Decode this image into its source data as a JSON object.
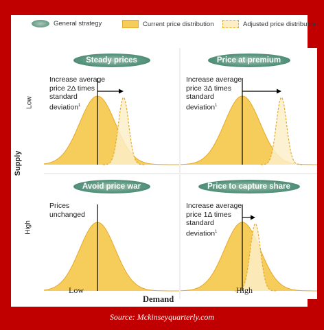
{
  "legend": {
    "strategy": "General strategy",
    "current": "Current price distribution",
    "adjusted": "Adjusted price distribution"
  },
  "axes": {
    "y_title": "Supply",
    "y_low": "Low",
    "y_high": "High",
    "x_title": "Demand",
    "x_low": "Low",
    "x_high": "High"
  },
  "quadrants": {
    "top_left": {
      "title": "Steady prices",
      "line1": "Increase average",
      "line2": "price 2Δ times",
      "line3": "standard",
      "line4": "deviation",
      "footnote": "1",
      "shift_sd": 2
    },
    "top_right": {
      "title": "Price at premium",
      "line1": "Increase average",
      "line2": "price 3Δ times",
      "line3": "standard",
      "line4": "deviation",
      "footnote": "1",
      "shift_sd": 3
    },
    "bottom_left": {
      "title": "Avoid price war",
      "line1": "Prices",
      "line2": "unchanged",
      "shift_sd": 0
    },
    "bottom_right": {
      "title": "Price to capture share",
      "line1": "Increase average",
      "line2": "price 1Δ times",
      "line3": "standard",
      "line4": "deviation",
      "footnote": "1",
      "shift_sd": 1
    }
  },
  "colors": {
    "current_fill": "#f6cc5a",
    "current_stroke": "#e5a92a",
    "adjusted_fill": "#fcefc8",
    "adjusted_stroke": "#e5a92a"
  },
  "source": "Source: Mckinseyquarterly.com"
}
